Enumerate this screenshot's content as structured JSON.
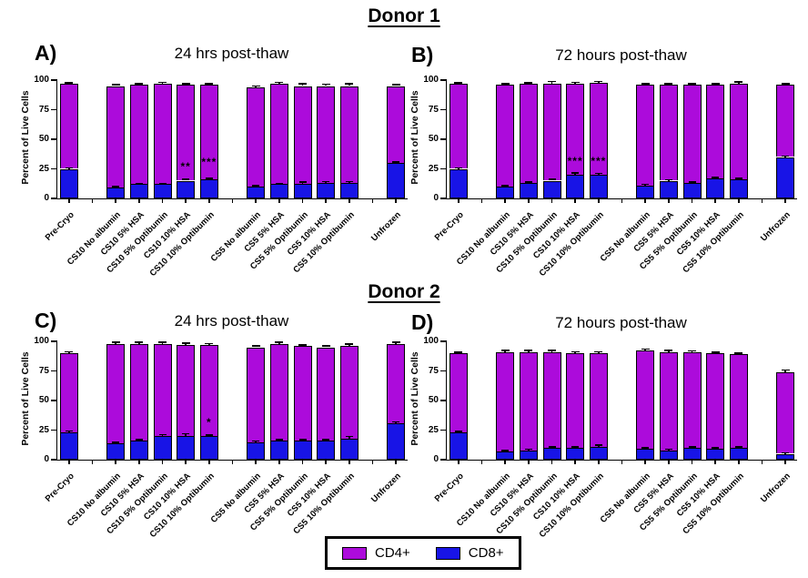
{
  "figure": {
    "sections": [
      {
        "title": "Donor 1"
      },
      {
        "title": "Donor 2"
      }
    ],
    "ylabel": "Percent of Live Cells",
    "yticks": [
      0,
      25,
      50,
      75,
      100
    ],
    "colors": {
      "cd4": "#AC0BDB",
      "cd8": "#1814E6",
      "axis": "#000000"
    },
    "legend": {
      "items": [
        {
          "label": "CD4+",
          "color": "#AC0BDB"
        },
        {
          "label": "CD8+",
          "color": "#1814E6"
        }
      ]
    }
  },
  "chart_data": [
    {
      "id": "A",
      "panel_label": "A)",
      "section": "Donor 1",
      "title": "24 hrs post-thaw",
      "type": "bar",
      "stacked": true,
      "ylabel": "Percent of Live Cells",
      "ylim": [
        0,
        100
      ],
      "grid": false,
      "legend_position": "bottom-center-shared",
      "categories": [
        "Pre-Cryo",
        "CS10 No albumin",
        "CS10 5% HSA",
        "CS10 5% Optibumin",
        "CS10 10% HSA",
        "CS10 10% Optibumin",
        "CS5 No albumin",
        "CS5 5% HSA",
        "CS5 5% Optibumin",
        "CS5 10% HSA",
        "CS5 10% Optibumin",
        "Unfrozen"
      ],
      "series": [
        {
          "name": "CD8+",
          "values": [
            25,
            9,
            12,
            12,
            15,
            16,
            10,
            12,
            12,
            13,
            13,
            30
          ]
        },
        {
          "name": "CD4+",
          "values": [
            72,
            86,
            84,
            85,
            81,
            80,
            84,
            85,
            83,
            82,
            82,
            65
          ]
        }
      ],
      "stack_totals": [
        97,
        95,
        96,
        97,
        96,
        96,
        94,
        97,
        95,
        95,
        95,
        95
      ],
      "total_err": [
        0.6,
        0.8,
        0.8,
        0.8,
        0.8,
        0.8,
        0.8,
        0.8,
        1.8,
        1.2,
        1.8,
        0.8
      ],
      "cd8_err": [
        0.5,
        0.5,
        0.5,
        0.5,
        0.8,
        0.8,
        0.5,
        0.5,
        1.5,
        0.8,
        0.8,
        0.5
      ],
      "annotations": [
        {
          "category": "CS10 10% HSA",
          "text": "**",
          "y": 22
        },
        {
          "category": "CS10 10% Optibumin",
          "text": "***",
          "y": 26
        }
      ]
    },
    {
      "id": "B",
      "panel_label": "B)",
      "section": "Donor 1",
      "title": "72 hours post-thaw",
      "type": "bar",
      "stacked": true,
      "ylabel": "Percent of Live Cells",
      "ylim": [
        0,
        100
      ],
      "grid": false,
      "legend_position": "bottom-center-shared",
      "categories": [
        "Pre-Cryo",
        "CS10 No albumin",
        "CS10 5% HSA",
        "CS10 5% Optibumin",
        "CS10 10% HSA",
        "CS10 10% Optibumin",
        "CS5 No albumin",
        "CS5 5% HSA",
        "CS5 5% Optibumin",
        "CS5 10% HSA",
        "CS5 10% Optibumin",
        "Unfrozen"
      ],
      "series": [
        {
          "name": "CD8+",
          "values": [
            25,
            10,
            13,
            15,
            20,
            20,
            11,
            15,
            13,
            17,
            16,
            35
          ]
        },
        {
          "name": "CD4+",
          "values": [
            72,
            86,
            84,
            82,
            77,
            78,
            85,
            81,
            83,
            79,
            81,
            61
          ]
        }
      ],
      "stack_totals": [
        97,
        96,
        97,
        97,
        97,
        98,
        96,
        96,
        96,
        96,
        97,
        96
      ],
      "total_err": [
        0.6,
        0.6,
        0.6,
        1.5,
        0.8,
        0.6,
        0.6,
        0.6,
        0.8,
        0.8,
        1.0,
        0.6
      ],
      "cd8_err": [
        0.5,
        0.5,
        0.5,
        0.8,
        1.2,
        0.8,
        0.5,
        0.5,
        0.5,
        0.5,
        0.8,
        0.5
      ],
      "annotations": [
        {
          "category": "CS10 10% HSA",
          "text": "***",
          "y": 27
        },
        {
          "category": "CS10 10% Optibumin",
          "text": "***",
          "y": 27
        }
      ]
    },
    {
      "id": "C",
      "panel_label": "C)",
      "section": "Donor 2",
      "title": "24 hrs post-thaw",
      "type": "bar",
      "stacked": true,
      "ylabel": "Percent of Live Cells",
      "ylim": [
        0,
        100
      ],
      "grid": false,
      "legend_position": "bottom-center-shared",
      "categories": [
        "Pre-Cryo",
        "CS10 No albumin",
        "CS10 5% HSA",
        "CS10 5% Optibumin",
        "CS10 10% HSA",
        "CS10 10% Optibumin",
        "CS5 No albumin",
        "CS5 5% HSA",
        "CS5 5% Optibumin",
        "CS5 10% HSA",
        "CS5 10% Optibumin",
        "Unfrozen"
      ],
      "series": [
        {
          "name": "CD8+",
          "values": [
            23,
            14,
            16,
            20,
            20,
            20,
            15,
            16,
            16,
            16,
            18,
            31
          ]
        },
        {
          "name": "CD4+",
          "values": [
            67,
            84,
            82,
            78,
            77,
            77,
            80,
            82,
            80,
            79,
            78,
            67
          ]
        }
      ],
      "stack_totals": [
        90,
        98,
        98,
        98,
        97,
        97,
        95,
        98,
        96,
        95,
        96,
        98
      ],
      "total_err": [
        1.0,
        0.8,
        0.8,
        0.8,
        1.2,
        0.8,
        0.8,
        1.0,
        0.8,
        0.8,
        1.2,
        0.8
      ],
      "cd8_err": [
        0.8,
        0.5,
        0.5,
        0.8,
        1.5,
        0.5,
        0.5,
        0.5,
        0.5,
        0.5,
        1.2,
        0.5
      ],
      "annotations": [
        {
          "category": "CS10 10% Optibumin",
          "text": "*",
          "y": 27
        }
      ]
    },
    {
      "id": "D",
      "panel_label": "D)",
      "section": "Donor 2",
      "title": "72 hours post-thaw",
      "type": "bar",
      "stacked": true,
      "ylabel": "Percent of Live Cells",
      "ylim": [
        0,
        100
      ],
      "grid": false,
      "legend_position": "bottom-center-shared",
      "categories": [
        "Pre-Cryo",
        "CS10 No albumin",
        "CS10 5% HSA",
        "CS10 5% Optibumin",
        "CS10 10% HSA",
        "CS10 10% Optibumin",
        "CS5 No albumin",
        "CS5 5% HSA",
        "CS5 5% Optibumin",
        "CS5 10% HSA",
        "CS5 10% Optibumin",
        "Unfrozen"
      ],
      "series": [
        {
          "name": "CD8+",
          "values": [
            23,
            7,
            8,
            10,
            10,
            11,
            9,
            8,
            10,
            9,
            10,
            5
          ]
        },
        {
          "name": "CD4+",
          "values": [
            67,
            84,
            83,
            81,
            80,
            79,
            83,
            83,
            81,
            81,
            79,
            69
          ]
        }
      ],
      "stack_totals": [
        90,
        91,
        91,
        91,
        90,
        90,
        92,
        91,
        91,
        90,
        89,
        74
      ],
      "total_err": [
        0.6,
        0.8,
        0.8,
        0.8,
        0.8,
        0.8,
        1.0,
        0.8,
        0.6,
        0.6,
        0.8,
        1.5
      ],
      "cd8_err": [
        0.5,
        0.5,
        0.5,
        0.5,
        0.5,
        0.8,
        0.5,
        0.5,
        0.5,
        0.5,
        0.5,
        0.5
      ],
      "annotations": []
    }
  ]
}
